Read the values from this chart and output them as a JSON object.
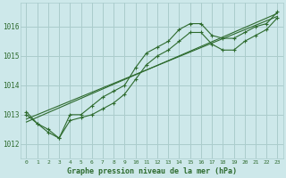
{
  "background_color": "#cde8ea",
  "grid_color": "#aacccc",
  "line_color": "#2d6a2d",
  "marker_color": "#2d6a2d",
  "title": "Graphe pression niveau de la mer (hPa)",
  "label_color": "#2d6a2d",
  "ylim": [
    1011.5,
    1016.8
  ],
  "xlim": [
    -0.5,
    23.5
  ],
  "yticks": [
    1012,
    1013,
    1014,
    1015,
    1016
  ],
  "xticks": [
    0,
    1,
    2,
    3,
    4,
    5,
    6,
    7,
    8,
    9,
    10,
    11,
    12,
    13,
    14,
    15,
    16,
    17,
    18,
    19,
    20,
    21,
    22,
    23
  ],
  "series1": [
    1013.1,
    1012.7,
    1012.5,
    1012.2,
    1013.0,
    1013.0,
    1013.3,
    1013.6,
    1013.8,
    1014.0,
    1014.6,
    1015.1,
    1015.3,
    1015.5,
    1015.9,
    1016.1,
    1016.1,
    1015.7,
    1015.6,
    1015.6,
    1015.8,
    1016.0,
    1016.1,
    1016.5
  ],
  "series2": [
    1013.0,
    1012.7,
    1012.4,
    1012.2,
    1012.8,
    1012.9,
    1013.0,
    1013.2,
    1013.4,
    1013.7,
    1014.2,
    1014.7,
    1015.0,
    1015.2,
    1015.5,
    1015.8,
    1015.8,
    1015.4,
    1015.2,
    1015.2,
    1015.5,
    1015.7,
    1015.9,
    1016.3
  ],
  "trend1_x": [
    0,
    23
  ],
  "trend1_y": [
    1012.75,
    1016.45
  ],
  "trend2_x": [
    0,
    23
  ],
  "trend2_y": [
    1012.85,
    1016.35
  ]
}
